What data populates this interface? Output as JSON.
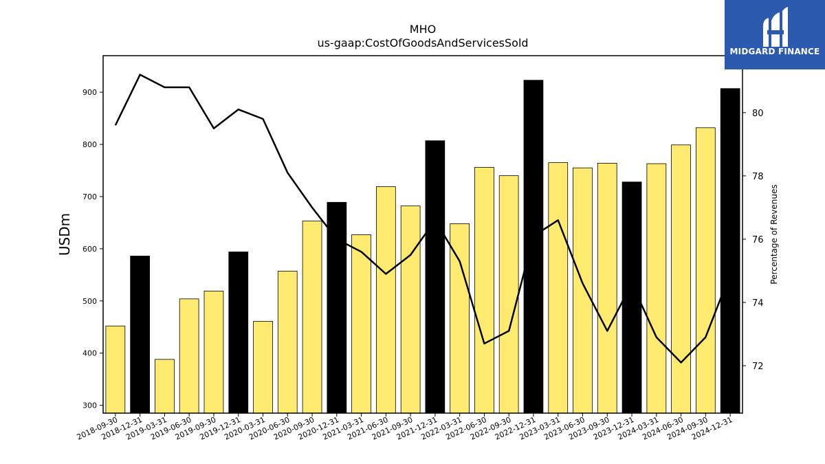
{
  "chart_data": {
    "type": "bar",
    "title": "MHO",
    "subtitle": "us-gaap:CostOfGoodsAndServicesSold",
    "ylabel": "USDm",
    "y2label": "Percentage of Revenues",
    "ylim": [
      285,
      970
    ],
    "y2lim": [
      70.5,
      81.8
    ],
    "yticks": [
      300,
      400,
      500,
      600,
      700,
      800,
      900
    ],
    "y2ticks": [
      72,
      74,
      76,
      78,
      80
    ],
    "categories": [
      "2018-09-30",
      "2018-12-31",
      "2019-03-31",
      "2019-06-30",
      "2019-09-30",
      "2019-12-31",
      "2020-03-31",
      "2020-06-30",
      "2020-09-30",
      "2020-12-31",
      "2021-03-31",
      "2021-06-30",
      "2021-09-30",
      "2021-12-31",
      "2022-03-31",
      "2022-06-30",
      "2022-09-30",
      "2022-12-31",
      "2023-03-31",
      "2023-06-30",
      "2023-09-30",
      "2023-12-31",
      "2024-03-31",
      "2024-06-30",
      "2024-09-30",
      "2024-12-31"
    ],
    "series": [
      {
        "type": "bar",
        "values": [
          452,
          586,
          388,
          504,
          519,
          594,
          461,
          557,
          653,
          689,
          627,
          719,
          682,
          807,
          648,
          756,
          740,
          923,
          765,
          755,
          764,
          728,
          763,
          799,
          832,
          907
        ],
        "highlight": [
          false,
          true,
          false,
          false,
          false,
          true,
          false,
          false,
          false,
          true,
          false,
          false,
          false,
          true,
          false,
          false,
          false,
          true,
          false,
          false,
          false,
          true,
          false,
          false,
          false,
          true
        ]
      },
      {
        "type": "line",
        "axis": "right",
        "values": [
          79.6,
          81.2,
          80.8,
          80.8,
          79.5,
          80.1,
          79.8,
          78.1,
          77.0,
          76.0,
          75.6,
          74.9,
          75.5,
          76.6,
          75.3,
          72.7,
          73.1,
          76.1,
          76.6,
          74.6,
          73.1,
          74.6,
          72.9,
          72.1,
          72.9,
          74.9
        ]
      }
    ],
    "colors": {
      "bar": "#ffeb70",
      "bar_highlight": "#000000",
      "line": "#000000"
    },
    "grid": false
  },
  "logo": {
    "text": "MIDGARD FINANCE",
    "color": "#2b5aae"
  }
}
